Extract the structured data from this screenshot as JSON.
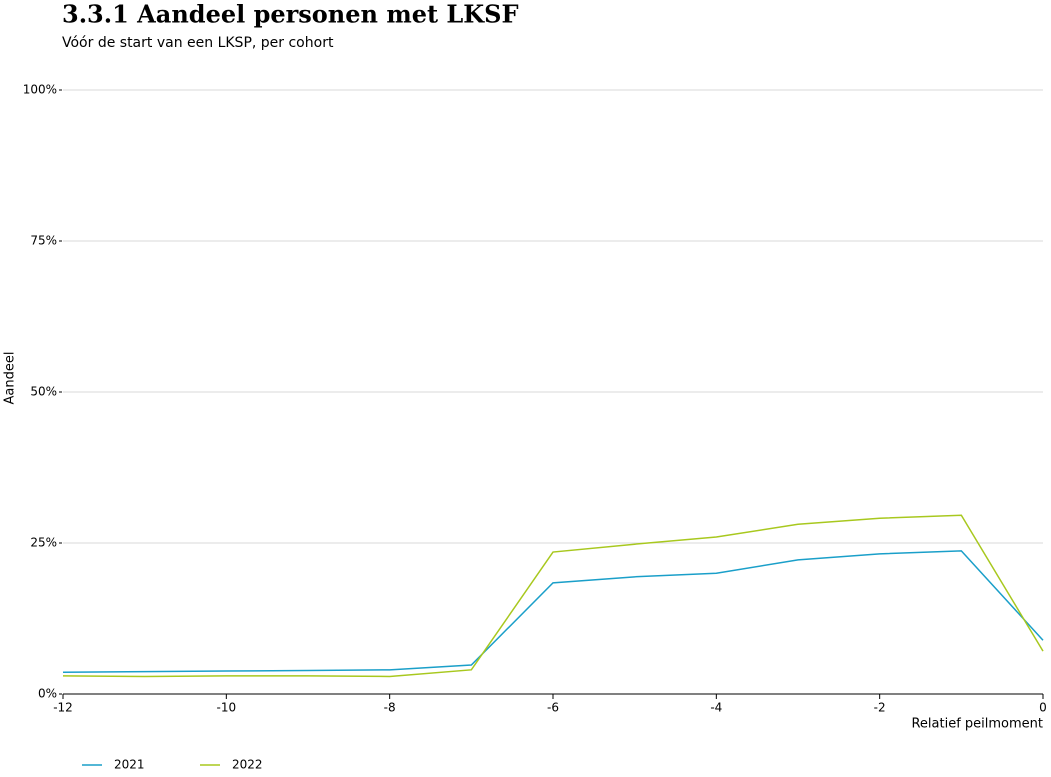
{
  "chart_data": {
    "type": "line",
    "title": "3.3.1  Aandeel personen met LKSF",
    "subtitle": "Vóór de start van een LKSP, per cohort",
    "y_label": "Aandeel",
    "x_label": "Relatief peilmoment",
    "x": [
      -12,
      -11,
      -10,
      -9,
      -8,
      -7,
      -6,
      -5,
      -4,
      -3,
      -2,
      -1,
      0
    ],
    "series": [
      {
        "name": "2021",
        "color": "#1a9fc9",
        "values": [
          3.6,
          3.7,
          3.8,
          3.9,
          4.0,
          4.8,
          18.4,
          19.4,
          20.0,
          22.2,
          23.2,
          23.7,
          8.9
        ]
      },
      {
        "name": "2022",
        "color": "#a8c81e",
        "values": [
          3.0,
          2.9,
          3.0,
          3.0,
          2.9,
          4.0,
          23.5,
          24.8,
          26.0,
          28.1,
          29.1,
          29.6,
          7.1
        ]
      }
    ],
    "xlim": [
      -12,
      0
    ],
    "xticks": [
      -12,
      -10,
      -8,
      -6,
      -4,
      -2,
      0
    ],
    "ylim": [
      0,
      100
    ],
    "yticks": [
      {
        "value": 0,
        "label": "0%"
      },
      {
        "value": 25,
        "label": "25%"
      },
      {
        "value": 50,
        "label": "50%"
      },
      {
        "value": 75,
        "label": "75%"
      },
      {
        "value": 100,
        "label": "100%"
      }
    ],
    "grid": true,
    "legend": "bottom-left"
  }
}
